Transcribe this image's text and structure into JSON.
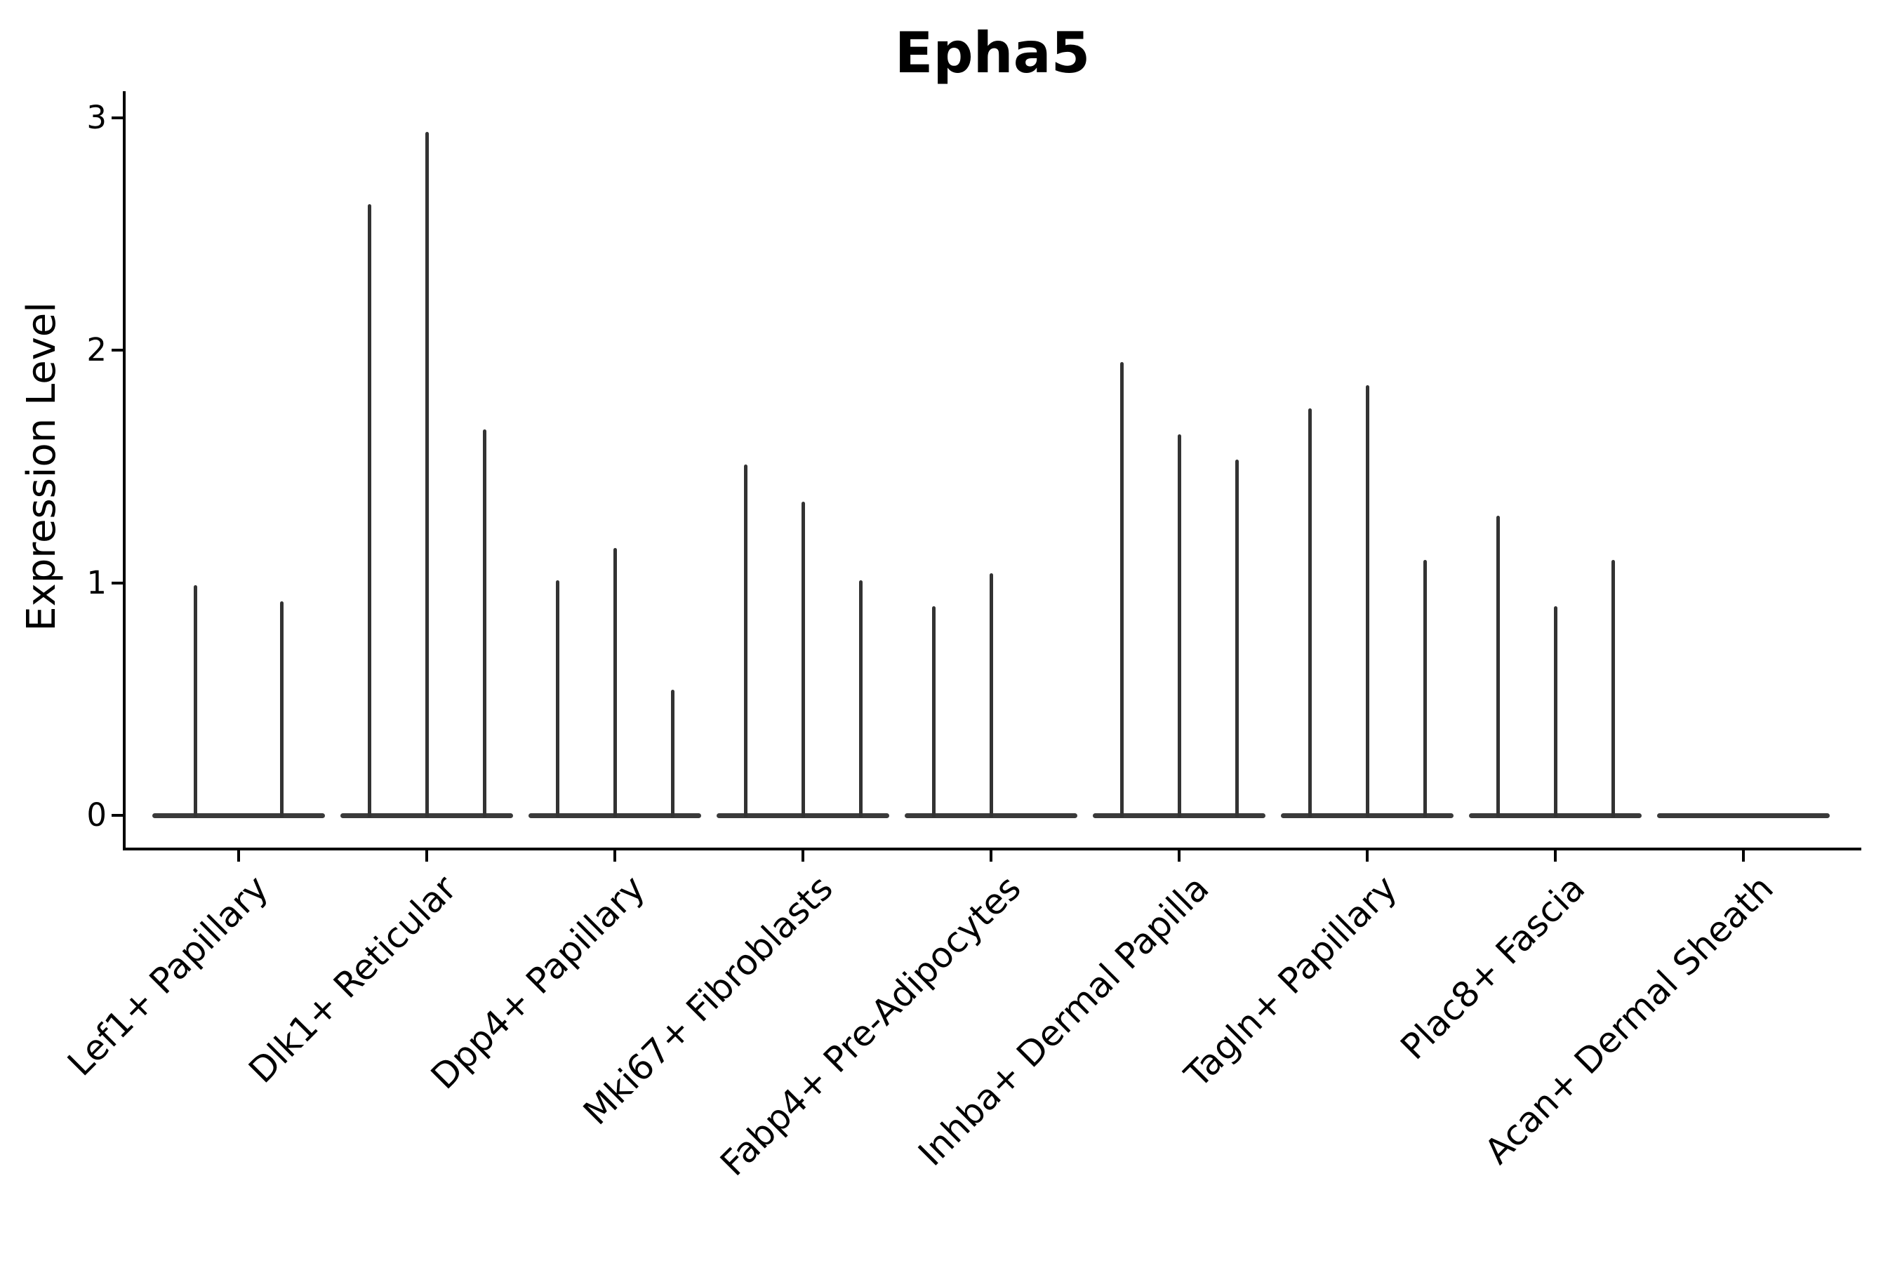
{
  "figure": {
    "title": "Epha5",
    "background_color": "#ffffff",
    "axis_color": "#000000",
    "violin_color": "#333333",
    "baseline_color": "#3a3a3a"
  },
  "chart_data": {
    "type": "violin",
    "title": "Epha5",
    "xlabel": "",
    "ylabel": "Expression Level",
    "ylim": [
      0,
      3.1
    ],
    "yticks": [
      0,
      1,
      2,
      3
    ],
    "ytick_labels": [
      "0",
      "1",
      "2",
      "3"
    ],
    "grid": false,
    "legend_position": "none",
    "x_label_rotation_deg": 45,
    "categories": [
      "Lef1+ Papillary",
      "Dlk1+ Reticular",
      "Dpp4+ Papillary",
      "Mki67+ Fibroblasts",
      "Fabp4+ Pre-Adipocytes",
      "Inhba+ Dermal Papilla",
      "Tagln+ Papillary",
      "Plac8+ Fascia",
      "Acan+ Dermal Sheath"
    ],
    "groups": [
      {
        "category": "Lef1+ Papillary",
        "spike_heights": [
          0.99,
          0.92
        ]
      },
      {
        "category": "Dlk1+ Reticular",
        "spike_heights": [
          2.63,
          2.94,
          1.66
        ]
      },
      {
        "category": "Dpp4+ Papillary",
        "spike_heights": [
          1.01,
          1.15,
          0.54
        ]
      },
      {
        "category": "Mki67+ Fibroblasts",
        "spike_heights": [
          1.51,
          1.35,
          1.01
        ]
      },
      {
        "category": "Fabp4+ Pre-Adipocytes",
        "spike_heights": [
          0.9,
          1.04,
          0
        ]
      },
      {
        "category": "Inhba+ Dermal Papilla",
        "spike_heights": [
          1.95,
          1.64,
          1.53
        ]
      },
      {
        "category": "Tagln+ Papillary",
        "spike_heights": [
          1.75,
          1.85,
          1.1
        ]
      },
      {
        "category": "Plac8+ Fascia",
        "spike_heights": [
          1.29,
          0.9,
          1.1
        ]
      },
      {
        "category": "Acan+ Dermal Sheath",
        "spike_heights": [
          0,
          0,
          0
        ]
      }
    ],
    "notes": "Each category shows one thin flat-based violin per sample; spike_heights are the maximum expression of each violin; 0 means a flat violin at the baseline."
  }
}
